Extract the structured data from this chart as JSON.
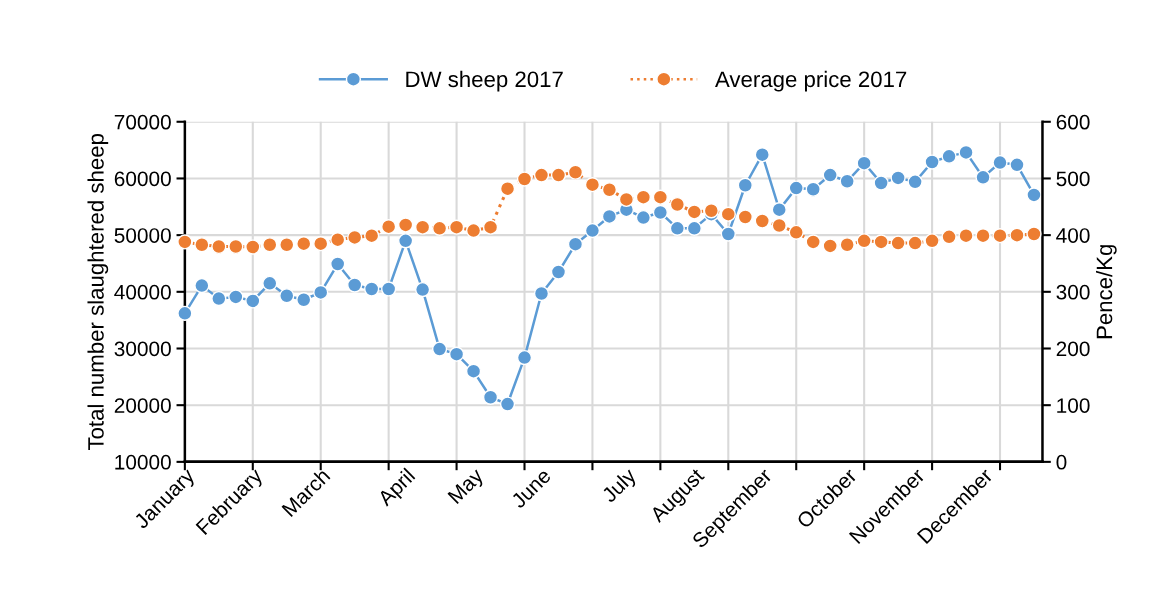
{
  "chart_data": {
    "type": "line",
    "categories": [
      "January",
      null,
      null,
      null,
      "February",
      null,
      null,
      null,
      "March",
      null,
      null,
      null,
      null,
      "April",
      null,
      null,
      null,
      "May",
      null,
      null,
      null,
      "June",
      null,
      null,
      null,
      null,
      "July",
      null,
      null,
      null,
      "August",
      null,
      null,
      null,
      "September",
      null,
      null,
      null,
      null,
      "October",
      null,
      null,
      null,
      "November",
      null,
      null,
      null,
      "December",
      null,
      null,
      null
    ],
    "series": [
      {
        "name": "DW sheep 2017",
        "color": "#5b9bd5",
        "line_style": "solid",
        "values": [
          36200,
          41100,
          38800,
          39100,
          38400,
          41500,
          39300,
          38600,
          39900,
          44900,
          41200,
          40500,
          40500,
          49000,
          40400,
          29900,
          29000,
          26000,
          21400,
          20200,
          28400,
          39700,
          43500,
          48400,
          50800,
          53300,
          54500,
          53100,
          54000,
          51200,
          51200,
          53700,
          50200,
          58800,
          64200,
          54500,
          58300,
          58100,
          60600,
          59500,
          62700,
          59200,
          60100,
          59400,
          62900,
          63900,
          64600,
          60200,
          62800,
          62400,
          57100
        ]
      },
      {
        "name": "Average price 2017",
        "color": "#ed7d31",
        "axis": "y2",
        "line_style": "dotted",
        "values": [
          388,
          383,
          380,
          380,
          379,
          383,
          383,
          385,
          385,
          392,
          396,
          399,
          415,
          418,
          414,
          412,
          414,
          408,
          414,
          482,
          499,
          506,
          506,
          511,
          489,
          480,
          463,
          467,
          467,
          454,
          441,
          443,
          437,
          432,
          425,
          417,
          405,
          388,
          381,
          383,
          390,
          388,
          386,
          386,
          390,
          397,
          399,
          399,
          399,
          400,
          402
        ]
      }
    ],
    "ylabel": "Total number slaughtered sheep",
    "y2label": "Pence/Kg",
    "ylim": [
      10000,
      70000
    ],
    "yticks": [
      10000,
      20000,
      30000,
      40000,
      50000,
      60000,
      70000
    ],
    "y2lim": [
      0,
      600
    ],
    "y2ticks": [
      0,
      100,
      200,
      300,
      400,
      500,
      600
    ],
    "grid": true,
    "legend": "top",
    "marker": "circle"
  }
}
